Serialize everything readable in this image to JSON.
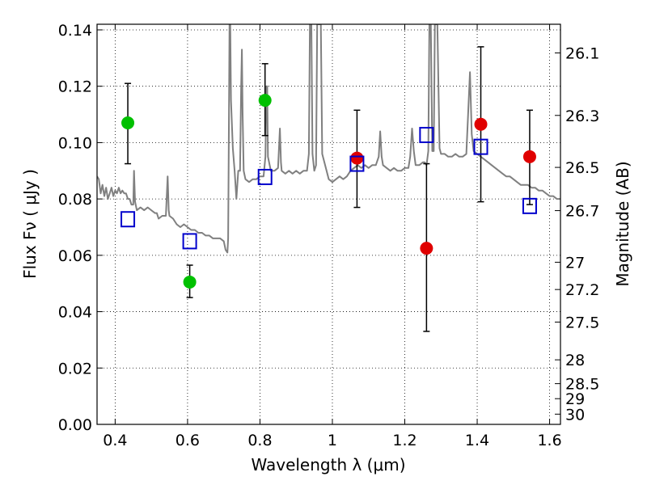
{
  "chart_data": {
    "type": "scatter",
    "title": "",
    "xlabel": "Wavelength  λ (μm)",
    "ylabel": "Flux  Fν  ( μJy )",
    "y2label": "Magnitude (AB)",
    "xlim": [
      0.35,
      1.63
    ],
    "ylim": [
      0.0,
      0.142
    ],
    "grid": true,
    "x_ticks": [
      {
        "value": 0.4,
        "label": "0.4"
      },
      {
        "value": 0.6,
        "label": "0.6"
      },
      {
        "value": 0.8,
        "label": "0.8"
      },
      {
        "value": 1.0,
        "label": "1"
      },
      {
        "value": 1.2,
        "label": "1.2"
      },
      {
        "value": 1.4,
        "label": "1.4"
      },
      {
        "value": 1.6,
        "label": "1.6"
      }
    ],
    "y_ticks": [
      {
        "value": 0.0,
        "label": "0.00"
      },
      {
        "value": 0.02,
        "label": "0.02"
      },
      {
        "value": 0.04,
        "label": "0.04"
      },
      {
        "value": 0.06,
        "label": "0.06"
      },
      {
        "value": 0.08,
        "label": "0.08"
      },
      {
        "value": 0.1,
        "label": "0.10"
      },
      {
        "value": 0.12,
        "label": "0.12"
      },
      {
        "value": 0.14,
        "label": "0.14"
      }
    ],
    "y2_ticks": [
      {
        "value": 26.1,
        "label": "26.1"
      },
      {
        "value": 26.3,
        "label": "26.3"
      },
      {
        "value": 26.5,
        "label": "26.5"
      },
      {
        "value": 26.7,
        "label": "26.7"
      },
      {
        "value": 27.0,
        "label": "27"
      },
      {
        "value": 27.2,
        "label": "27.2"
      },
      {
        "value": 27.5,
        "label": "27.5"
      },
      {
        "value": 28.0,
        "label": "28"
      },
      {
        "value": 28.5,
        "label": "28.5"
      },
      {
        "value": 29.0,
        "label": "29"
      },
      {
        "value": 30.0,
        "label": "30"
      }
    ],
    "series": [
      {
        "kind": "model-spectrum",
        "color": "#808080",
        "points": [
          [
            0.35,
            0.088
          ],
          [
            0.355,
            0.087
          ],
          [
            0.36,
            0.082
          ],
          [
            0.365,
            0.085
          ],
          [
            0.37,
            0.081
          ],
          [
            0.375,
            0.084
          ],
          [
            0.38,
            0.08
          ],
          [
            0.385,
            0.082
          ],
          [
            0.39,
            0.084
          ],
          [
            0.395,
            0.081
          ],
          [
            0.4,
            0.083
          ],
          [
            0.405,
            0.082
          ],
          [
            0.41,
            0.084
          ],
          [
            0.415,
            0.082
          ],
          [
            0.42,
            0.083
          ],
          [
            0.425,
            0.082
          ],
          [
            0.43,
            0.082
          ],
          [
            0.435,
            0.08
          ],
          [
            0.44,
            0.08
          ],
          [
            0.445,
            0.078
          ],
          [
            0.45,
            0.078
          ],
          [
            0.452,
            0.09
          ],
          [
            0.455,
            0.079
          ],
          [
            0.46,
            0.076
          ],
          [
            0.47,
            0.077
          ],
          [
            0.48,
            0.076
          ],
          [
            0.49,
            0.077
          ],
          [
            0.5,
            0.076
          ],
          [
            0.51,
            0.075
          ],
          [
            0.515,
            0.075
          ],
          [
            0.52,
            0.073
          ],
          [
            0.53,
            0.074
          ],
          [
            0.54,
            0.074
          ],
          [
            0.545,
            0.088
          ],
          [
            0.548,
            0.076
          ],
          [
            0.55,
            0.074
          ],
          [
            0.56,
            0.073
          ],
          [
            0.57,
            0.071
          ],
          [
            0.58,
            0.07
          ],
          [
            0.59,
            0.071
          ],
          [
            0.6,
            0.07
          ],
          [
            0.61,
            0.069
          ],
          [
            0.62,
            0.069
          ],
          [
            0.63,
            0.068
          ],
          [
            0.64,
            0.068
          ],
          [
            0.65,
            0.067
          ],
          [
            0.66,
            0.067
          ],
          [
            0.67,
            0.066
          ],
          [
            0.68,
            0.066
          ],
          [
            0.69,
            0.066
          ],
          [
            0.7,
            0.065
          ],
          [
            0.705,
            0.062
          ],
          [
            0.71,
            0.061
          ],
          [
            0.712,
            0.066
          ],
          [
            0.714,
            0.1
          ],
          [
            0.716,
            0.142
          ],
          [
            0.718,
            0.142
          ],
          [
            0.72,
            0.115
          ],
          [
            0.725,
            0.098
          ],
          [
            0.73,
            0.09
          ],
          [
            0.735,
            0.08
          ],
          [
            0.74,
            0.09
          ],
          [
            0.745,
            0.09
          ],
          [
            0.748,
            0.12
          ],
          [
            0.75,
            0.133
          ],
          [
            0.752,
            0.11
          ],
          [
            0.755,
            0.09
          ],
          [
            0.76,
            0.087
          ],
          [
            0.77,
            0.086
          ],
          [
            0.78,
            0.087
          ],
          [
            0.79,
            0.087
          ],
          [
            0.8,
            0.088
          ],
          [
            0.81,
            0.088
          ],
          [
            0.815,
            0.095
          ],
          [
            0.818,
            0.12
          ],
          [
            0.82,
            0.12
          ],
          [
            0.822,
            0.095
          ],
          [
            0.83,
            0.09
          ],
          [
            0.84,
            0.09
          ],
          [
            0.85,
            0.091
          ],
          [
            0.855,
            0.105
          ],
          [
            0.858,
            0.093
          ],
          [
            0.86,
            0.09
          ],
          [
            0.87,
            0.089
          ],
          [
            0.88,
            0.09
          ],
          [
            0.89,
            0.089
          ],
          [
            0.9,
            0.09
          ],
          [
            0.91,
            0.089
          ],
          [
            0.92,
            0.09
          ],
          [
            0.93,
            0.09
          ],
          [
            0.935,
            0.096
          ],
          [
            0.938,
            0.142
          ],
          [
            0.942,
            0.142
          ],
          [
            0.945,
            0.096
          ],
          [
            0.95,
            0.09
          ],
          [
            0.955,
            0.092
          ],
          [
            0.958,
            0.142
          ],
          [
            0.962,
            0.142
          ],
          [
            0.966,
            0.142
          ],
          [
            0.968,
            0.142
          ],
          [
            0.972,
            0.096
          ],
          [
            0.98,
            0.092
          ],
          [
            0.99,
            0.087
          ],
          [
            1.0,
            0.086
          ],
          [
            1.01,
            0.087
          ],
          [
            1.02,
            0.088
          ],
          [
            1.03,
            0.087
          ],
          [
            1.04,
            0.088
          ],
          [
            1.05,
            0.09
          ],
          [
            1.06,
            0.091
          ],
          [
            1.07,
            0.092
          ],
          [
            1.08,
            0.091
          ],
          [
            1.09,
            0.092
          ],
          [
            1.1,
            0.091
          ],
          [
            1.11,
            0.092
          ],
          [
            1.12,
            0.092
          ],
          [
            1.128,
            0.095
          ],
          [
            1.132,
            0.104
          ],
          [
            1.136,
            0.095
          ],
          [
            1.14,
            0.092
          ],
          [
            1.15,
            0.091
          ],
          [
            1.16,
            0.09
          ],
          [
            1.17,
            0.091
          ],
          [
            1.18,
            0.09
          ],
          [
            1.19,
            0.09
          ],
          [
            1.2,
            0.091
          ],
          [
            1.21,
            0.091
          ],
          [
            1.215,
            0.095
          ],
          [
            1.22,
            0.105
          ],
          [
            1.225,
            0.097
          ],
          [
            1.23,
            0.092
          ],
          [
            1.24,
            0.092
          ],
          [
            1.25,
            0.093
          ],
          [
            1.255,
            0.093
          ],
          [
            1.26,
            0.092
          ],
          [
            1.265,
            0.097
          ],
          [
            1.268,
            0.142
          ],
          [
            1.272,
            0.142
          ],
          [
            1.276,
            0.097
          ],
          [
            1.28,
            0.097
          ],
          [
            1.283,
            0.142
          ],
          [
            1.29,
            0.142
          ],
          [
            1.296,
            0.098
          ],
          [
            1.3,
            0.096
          ],
          [
            1.31,
            0.096
          ],
          [
            1.32,
            0.095
          ],
          [
            1.33,
            0.095
          ],
          [
            1.34,
            0.096
          ],
          [
            1.35,
            0.095
          ],
          [
            1.36,
            0.095
          ],
          [
            1.37,
            0.096
          ],
          [
            1.375,
            0.11
          ],
          [
            1.38,
            0.125
          ],
          [
            1.385,
            0.103
          ],
          [
            1.39,
            0.097
          ],
          [
            1.4,
            0.096
          ],
          [
            1.41,
            0.095
          ],
          [
            1.42,
            0.094
          ],
          [
            1.43,
            0.093
          ],
          [
            1.44,
            0.092
          ],
          [
            1.45,
            0.091
          ],
          [
            1.46,
            0.09
          ],
          [
            1.47,
            0.089
          ],
          [
            1.48,
            0.088
          ],
          [
            1.49,
            0.088
          ],
          [
            1.5,
            0.087
          ],
          [
            1.51,
            0.086
          ],
          [
            1.52,
            0.085
          ],
          [
            1.53,
            0.085
          ],
          [
            1.54,
            0.085
          ],
          [
            1.55,
            0.084
          ],
          [
            1.56,
            0.084
          ],
          [
            1.57,
            0.083
          ],
          [
            1.58,
            0.083
          ],
          [
            1.59,
            0.082
          ],
          [
            1.6,
            0.081
          ],
          [
            1.61,
            0.081
          ],
          [
            1.62,
            0.08
          ],
          [
            1.63,
            0.08
          ]
        ]
      },
      {
        "kind": "observed-flux",
        "color": "#00c000",
        "points": [
          {
            "x": 0.435,
            "y": 0.107,
            "ylo": 0.0925,
            "yhi": 0.121
          },
          {
            "x": 0.606,
            "y": 0.0505,
            "ylo": 0.045,
            "yhi": 0.0565
          },
          {
            "x": 0.814,
            "y": 0.115,
            "ylo": 0.1025,
            "yhi": 0.128
          }
        ]
      },
      {
        "kind": "observed-flux",
        "color": "#e00000",
        "points": [
          {
            "x": 1.068,
            "y": 0.0945,
            "ylo": 0.077,
            "yhi": 0.1115
          },
          {
            "x": 1.26,
            "y": 0.0625,
            "ylo": 0.033,
            "yhi": 0.0925
          },
          {
            "x": 1.41,
            "y": 0.1065,
            "ylo": 0.079,
            "yhi": 0.134
          },
          {
            "x": 1.545,
            "y": 0.095,
            "ylo": 0.078,
            "yhi": 0.1115
          }
        ]
      },
      {
        "kind": "model-photometry",
        "color": "#0000cc",
        "points": [
          {
            "x": 0.435,
            "y": 0.0728
          },
          {
            "x": 0.606,
            "y": 0.065
          },
          {
            "x": 0.814,
            "y": 0.0878
          },
          {
            "x": 1.068,
            "y": 0.0925
          },
          {
            "x": 1.26,
            "y": 0.1027
          },
          {
            "x": 1.41,
            "y": 0.0985
          },
          {
            "x": 1.545,
            "y": 0.0775
          }
        ]
      }
    ]
  }
}
